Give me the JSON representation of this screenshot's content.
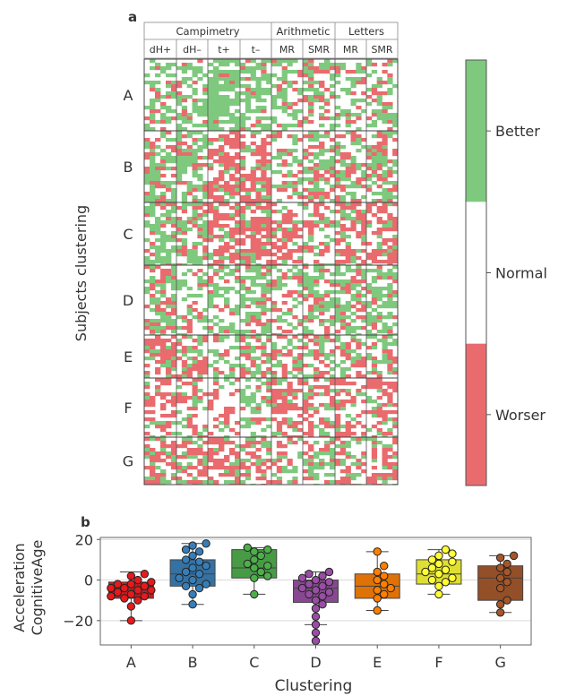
{
  "chart_data": [
    {
      "type": "heatmap",
      "panel_label": "a",
      "group_headers": [
        "Campimetry",
        "Arithmetic",
        "Letters"
      ],
      "column_headers": [
        "dH+",
        "dH–",
        "t+",
        "t–",
        "MR",
        "SMR",
        "MR",
        "SMR"
      ],
      "ylabel": "Subjects clustering",
      "clusters": [
        "A",
        "B",
        "C",
        "D",
        "E",
        "F",
        "G"
      ],
      "colorbar": {
        "labels": [
          "Better",
          "Normal",
          "Worser"
        ],
        "colors": [
          "#7fc97f",
          "#ffffff",
          "#e96b6e"
        ]
      }
    },
    {
      "type": "box",
      "panel_label": "b",
      "ylabel": "Acceleration\nCognitiveAge",
      "xlabel": "Clustering",
      "ylim": [
        -32,
        21
      ],
      "yticks": [
        20,
        0,
        -20
      ],
      "ytick_labels": [
        "20",
        "0",
        "−20"
      ],
      "grid": true,
      "categories": [
        "A",
        "B",
        "C",
        "D",
        "E",
        "F",
        "G"
      ],
      "colors": [
        "#e41a1c",
        "#377eb8",
        "#4daf4a",
        "#984ea3",
        "#ff7f00",
        "#ffff33",
        "#a65628"
      ],
      "boxes": [
        {
          "q1": -9,
          "median": -5,
          "q3": -1,
          "whislo": -20,
          "whishi": 4
        },
        {
          "q1": -3,
          "median": 3,
          "q3": 10,
          "whislo": -12,
          "whishi": 18
        },
        {
          "q1": 1,
          "median": 6,
          "q3": 15,
          "whislo": -7,
          "whishi": 16
        },
        {
          "q1": -11,
          "median": -4,
          "q3": 0,
          "whislo": -22,
          "whishi": 4
        },
        {
          "q1": -9,
          "median": -3,
          "q3": 3,
          "whislo": -15,
          "whishi": 14
        },
        {
          "q1": -2,
          "median": 3,
          "q3": 10,
          "whislo": -7,
          "whishi": 15
        },
        {
          "q1": -10,
          "median": 1,
          "q3": 7,
          "whislo": -16,
          "whishi": 12
        }
      ],
      "points": [
        [
          -20,
          -13,
          -10,
          -9,
          -8,
          -8,
          -7,
          -6,
          -5,
          -5,
          -4,
          -4,
          -3,
          -2,
          -2,
          -1,
          0,
          2,
          3
        ],
        [
          -12,
          -7,
          -4,
          -3,
          -2,
          0,
          1,
          3,
          4,
          6,
          7,
          9,
          10,
          12,
          14,
          15,
          17,
          18
        ],
        [
          -7,
          1,
          2,
          4,
          6,
          7,
          8,
          10,
          12,
          14,
          15,
          16
        ],
        [
          -30,
          -26,
          -22,
          -18,
          -14,
          -12,
          -10,
          -8,
          -7,
          -6,
          -5,
          -4,
          -3,
          -2,
          -1,
          0,
          1,
          2,
          3,
          4
        ],
        [
          -15,
          -9,
          -7,
          -5,
          -4,
          -2,
          0,
          2,
          4,
          7,
          14
        ],
        [
          -7,
          -3,
          -1,
          0,
          1,
          3,
          4,
          5,
          6,
          8,
          9,
          10,
          12,
          13,
          15
        ],
        [
          -16,
          -12,
          -10,
          -4,
          -1,
          1,
          4,
          6,
          8,
          11,
          12
        ]
      ]
    }
  ]
}
